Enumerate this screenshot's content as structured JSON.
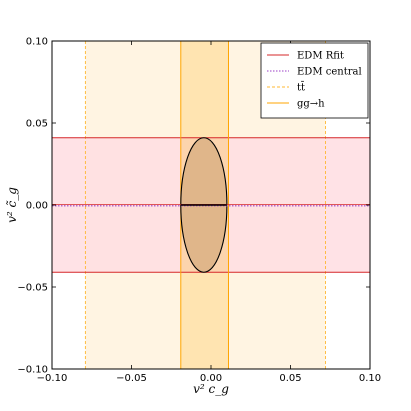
{
  "chart_data": {
    "type": "area",
    "xlabel": "v² c_g",
    "ylabel": "v² c̃_g",
    "xlim": [
      -0.1,
      0.1
    ],
    "ylim": [
      -0.1,
      0.1
    ],
    "xticks": [
      "−0.10",
      "−0.05",
      "0.00",
      "0.05",
      "0.10"
    ],
    "yticks": [
      "−0.10",
      "−0.05",
      "0.00",
      "0.05",
      "0.10"
    ],
    "legend_position": "top-right",
    "series": [
      {
        "name": "EDM Rfit",
        "kind": "horizontal-band",
        "y": [
          -0.041,
          0.041
        ],
        "line_color": "#d62728",
        "fill_color": "#ffdde2",
        "line_style": "solid"
      },
      {
        "name": "EDM central",
        "kind": "horizontal-line",
        "y": 0.0,
        "line_color": "#9b3fc7",
        "line_style": "dotted"
      },
      {
        "name": "tt̄",
        "kind": "vertical-band",
        "x": [
          -0.079,
          0.072
        ],
        "line_color": "#ffb833",
        "fill_color": "#fff4e2",
        "line_style": "dashed"
      },
      {
        "name": "gg→h",
        "kind": "vertical-band",
        "x": [
          -0.019,
          0.011
        ],
        "line_color": "#ffa500",
        "fill_color": "#ffe0a8",
        "line_style": "solid"
      }
    ],
    "ellipse": {
      "center": [
        -0.0045,
        0.0
      ],
      "x_half_width": 0.0145,
      "y_half_height": 0.041,
      "fill_color": "#e0b68a",
      "line_color": "#000000"
    }
  }
}
